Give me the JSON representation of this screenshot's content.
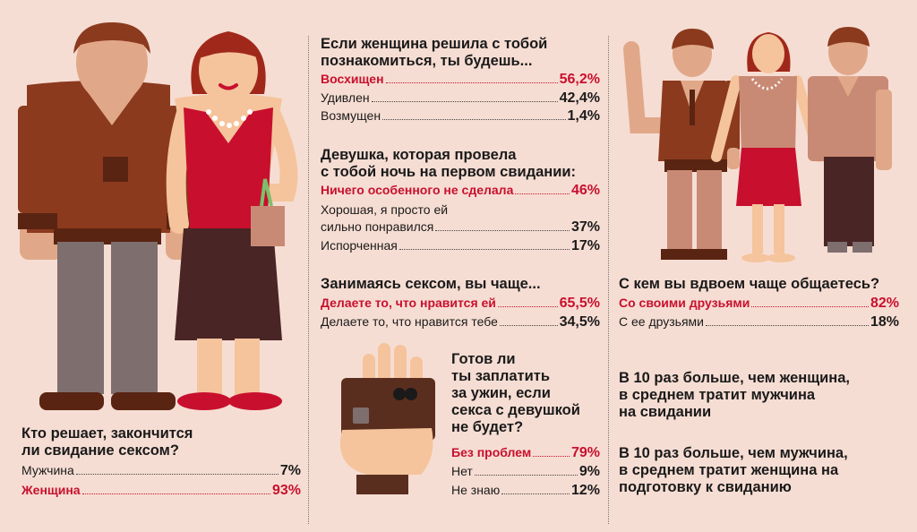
{
  "colors": {
    "accent": "#c8102e",
    "background": "#f6ddd3",
    "text": "#1a1a1a"
  },
  "icons": [
    "man-illustration",
    "woman-illustration",
    "trio-illustration",
    "hand-card-illustration"
  ],
  "s1": {
    "question_line1": "Кто решает, закончится",
    "question_line2": "ли свидание сексом?",
    "rows": [
      {
        "label": "Мужчина",
        "value": "7%"
      },
      {
        "label": "Женщина",
        "value": "93%"
      }
    ]
  },
  "s2": {
    "question_line1": "Если женщина решила с тобой",
    "question_line2": "познакомиться, ты будешь...",
    "rows": [
      {
        "label": "Восхищен",
        "value": "56,2%"
      },
      {
        "label": "Удивлен",
        "value": "42,4%"
      },
      {
        "label": "Возмущен",
        "value": "1,4%"
      }
    ]
  },
  "s3": {
    "question_line1": "Девушка, которая провела",
    "question_line2": "с тобой ночь на первом свидании:",
    "rows": [
      {
        "label": "Ничего особенного не сделала",
        "value": "46%"
      },
      {
        "label": "Хорошая, я просто ей",
        "value": ""
      },
      {
        "label": "сильно понравился",
        "value": "37%"
      },
      {
        "label": "Испорченная",
        "value": "17%"
      }
    ]
  },
  "s4": {
    "question": "Занимаясь сексом, вы чаще...",
    "rows": [
      {
        "label": "Делаете то, что нравится ей",
        "value": "65,5%"
      },
      {
        "label": "Делаете то, что нравится тебе",
        "value": "34,5%"
      }
    ]
  },
  "s5": {
    "question_lines": [
      "Готов ли",
      "ты заплатить",
      "за ужин, если",
      "секса с девушкой",
      "не будет?"
    ],
    "rows": [
      {
        "label": "Без проблем",
        "value": "79%"
      },
      {
        "label": "Нет",
        "value": "9%"
      },
      {
        "label": "Не знаю",
        "value": "12%"
      }
    ]
  },
  "s6": {
    "question": "С кем вы вдвоем чаще общаетесь?",
    "rows": [
      {
        "label": "Со своими друзьями",
        "value": "82%"
      },
      {
        "label": "С ее друзьями",
        "value": "18%"
      }
    ]
  },
  "facts": {
    "f1": [
      "В 10 раз больше, чем женщина,",
      "в среднем тратит мужчина",
      "на свидании"
    ],
    "f2": [
      "В 10 раз больше, чем мужчина,",
      "в среднем тратит женщина на",
      "подготовку к свиданию"
    ]
  }
}
